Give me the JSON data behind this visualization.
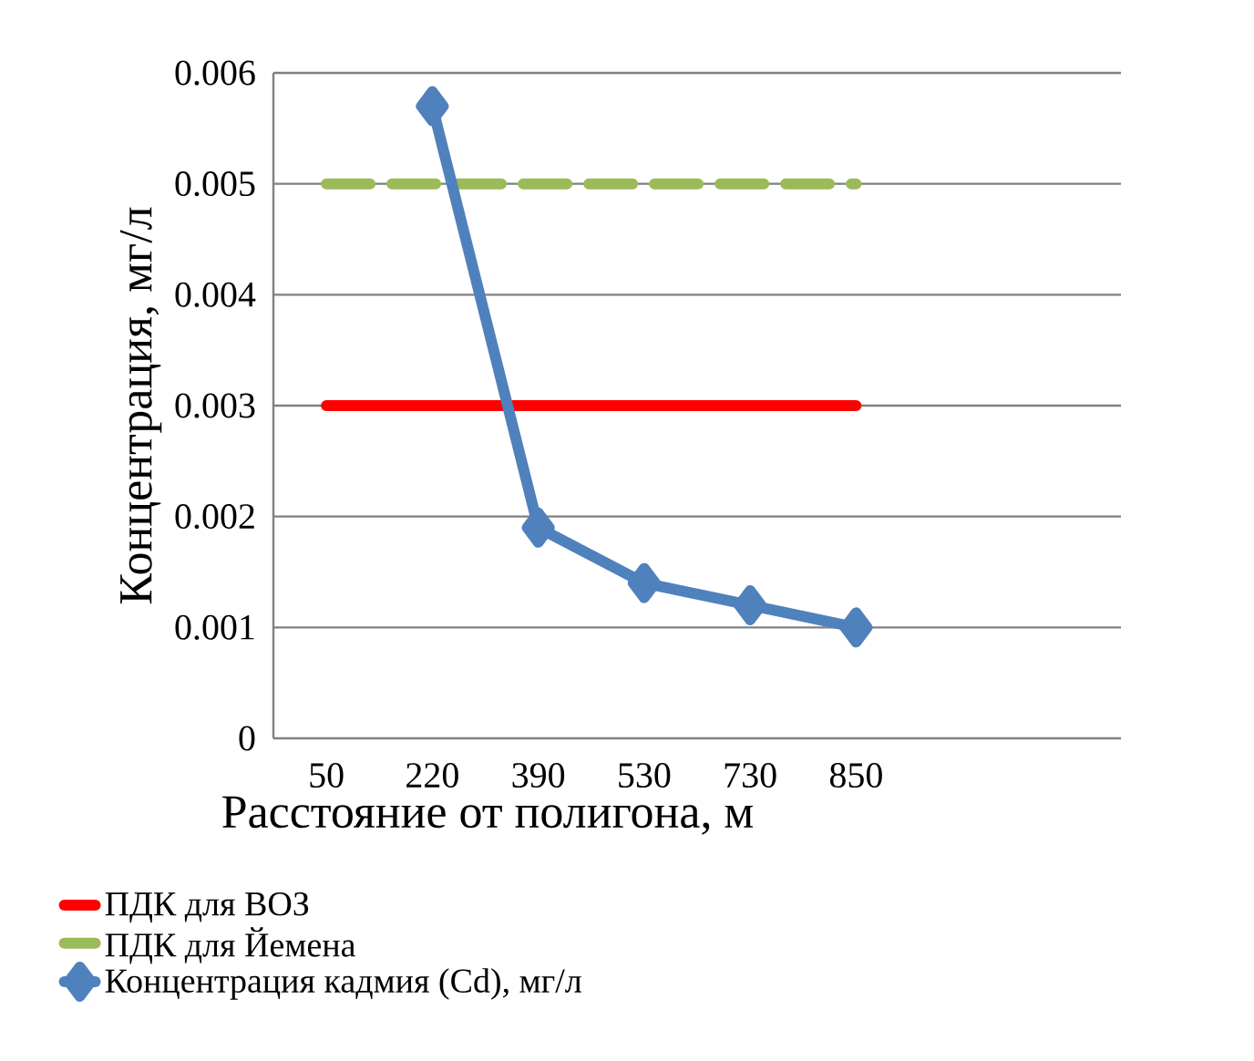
{
  "chart_data": {
    "type": "line",
    "xlabel": "Расстояние от полигона, м",
    "ylabel": "Концентрация, мг/л",
    "categories": [
      "50",
      "220",
      "390",
      "530",
      "730",
      "850",
      null,
      null
    ],
    "series": [
      {
        "name": "ПДК для ВОЗ",
        "color": "#ff0000",
        "line_style": "solid",
        "marker": "none",
        "values": [
          0.003,
          0.003,
          0.003,
          0.003,
          0.003,
          0.003,
          null,
          null
        ]
      },
      {
        "name": "ПДК для Йемена",
        "color": "#9bbb59",
        "line_style": "dashed",
        "marker": "none",
        "values": [
          0.005,
          0.005,
          0.005,
          0.005,
          0.005,
          0.005,
          null,
          null
        ]
      },
      {
        "name": "Концентрация кадмия (Cd), мг/л",
        "color": "#4f81bd",
        "line_style": "solid",
        "marker": "diamond",
        "values": [
          null,
          0.0057,
          0.0019,
          0.0014,
          0.0012,
          0.001,
          null,
          null
        ]
      }
    ],
    "ylim": [
      0,
      0.006
    ],
    "yticks": [
      {
        "value": 0,
        "label": "0"
      },
      {
        "value": 0.001,
        "label": "0.001"
      },
      {
        "value": 0.002,
        "label": "0.002"
      },
      {
        "value": 0.003,
        "label": "0.003"
      },
      {
        "value": 0.004,
        "label": "0.004"
      },
      {
        "value": 0.005,
        "label": "0.005"
      },
      {
        "value": 0.006,
        "label": "0.006"
      }
    ],
    "grid": "y",
    "legend": "bottom"
  }
}
